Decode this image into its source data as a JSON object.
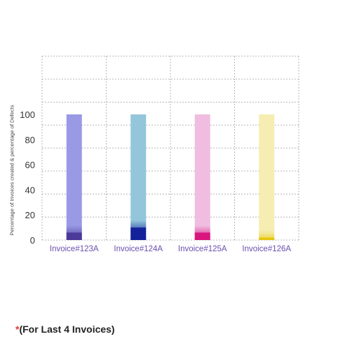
{
  "chart_data": {
    "type": "bar",
    "categories": [
      "Invoice#123A",
      "Invoice#124A",
      "Invoice#125A",
      "Invoice#126A"
    ],
    "series": [
      {
        "values": [
          100,
          100,
          100,
          100
        ]
      },
      {
        "values": [
          6,
          10,
          6,
          2
        ]
      }
    ],
    "ylabel": "Percentage of Invoices created & percentage of Defects",
    "ylim": [
      0,
      100
    ],
    "yticks": [
      0,
      20,
      40,
      60,
      80,
      100
    ],
    "grid": true,
    "colors": {
      "created": [
        "#9999e6",
        "#93c6da",
        "#f0bde0",
        "#f5edb1"
      ],
      "defects": [
        "#4b3a97",
        "#13229a",
        "#d9157e",
        "#e6c50a"
      ],
      "category_label": "#6a4fb0",
      "tick_label": "#333333",
      "grid": "#b5b5b5"
    }
  },
  "footnote": {
    "star": "*",
    "text": "(For Last 4 Invoices)"
  }
}
